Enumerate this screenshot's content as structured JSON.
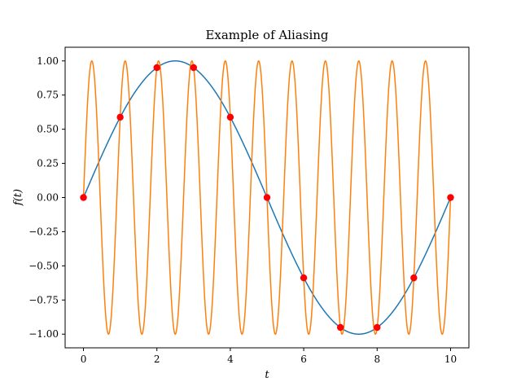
{
  "chart_data": {
    "type": "line",
    "title": "Example of Aliasing",
    "xlabel": "t",
    "ylabel": "f(t)",
    "xlim": [
      -0.5,
      10.5
    ],
    "ylim": [
      -1.1,
      1.1
    ],
    "x_ticks": [
      "0",
      "2",
      "4",
      "6",
      "8",
      "10"
    ],
    "x_tick_values": [
      0,
      2,
      4,
      6,
      8,
      10
    ],
    "y_ticks": [
      "−1.00",
      "−0.75",
      "−0.50",
      "−0.25",
      "0.00",
      "0.25",
      "0.50",
      "0.75",
      "1.00"
    ],
    "y_tick_values": [
      -1.0,
      -0.75,
      -0.5,
      -0.25,
      0.0,
      0.25,
      0.5,
      0.75,
      1.0
    ],
    "grid": false,
    "series": [
      {
        "color": "#1f77b4",
        "formula": "sin(2*pi*0.1*t)",
        "frequency": 0.1,
        "t_range": [
          0,
          10
        ]
      },
      {
        "color": "#ff7f0e",
        "formula": "sin(2*pi*1.1*t)",
        "frequency": 1.1,
        "t_range": [
          0,
          10
        ]
      }
    ],
    "samples": {
      "color": "#ff0000",
      "x": [
        0,
        1,
        2,
        3,
        4,
        5,
        6,
        7,
        8,
        9,
        10
      ],
      "y": [
        0.0,
        0.588,
        0.951,
        0.951,
        0.588,
        0.0,
        -0.588,
        -0.951,
        -0.951,
        -0.588,
        0.0
      ]
    }
  }
}
